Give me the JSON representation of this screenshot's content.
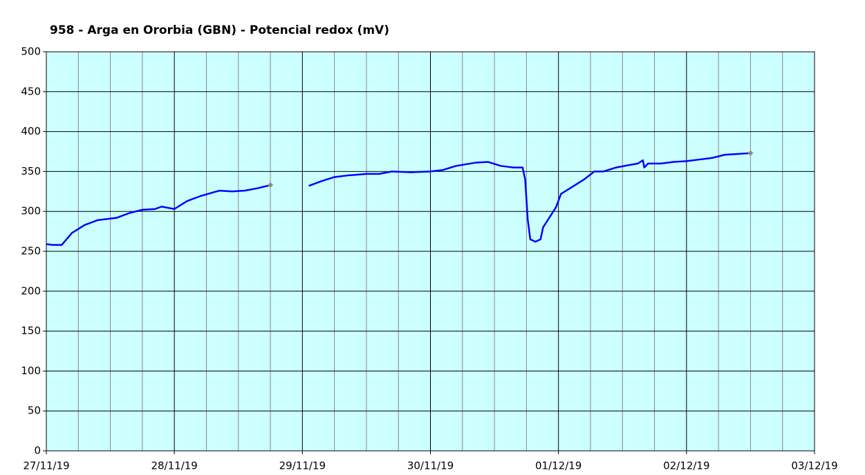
{
  "chart_data": {
    "type": "line",
    "title": "958 - Arga en Ororbia (GBN) - Potencial redox (mV)",
    "xlim": [
      0,
      6
    ],
    "xticks": [
      {
        "value": 0,
        "label": "27/11/19"
      },
      {
        "value": 1,
        "label": "28/11/19"
      },
      {
        "value": 2,
        "label": "29/11/19"
      },
      {
        "value": 3,
        "label": "30/11/19"
      },
      {
        "value": 4,
        "label": "01/12/19"
      },
      {
        "value": 5,
        "label": "02/12/19"
      },
      {
        "value": 6,
        "label": "03/12/19"
      }
    ],
    "xminorticks": [
      0.25,
      0.5,
      0.75,
      1.25,
      1.5,
      1.75,
      2.25,
      2.5,
      2.75,
      3.25,
      3.5,
      3.75,
      4.25,
      4.5,
      4.75,
      5.25,
      5.5,
      5.75
    ],
    "ylim": [
      0,
      500
    ],
    "yticks": [
      0,
      50,
      100,
      150,
      200,
      250,
      300,
      350,
      400,
      450,
      500
    ],
    "grid": true,
    "x": [
      0,
      0.05,
      0.12,
      0.2,
      0.3,
      0.4,
      0.45,
      0.55,
      0.65,
      0.75,
      0.85,
      0.9,
      1.0,
      1.1,
      1.2,
      1.35,
      1.45,
      1.55,
      1.65,
      1.75,
      1.9,
      2.05,
      2.15,
      2.25,
      2.35,
      2.5,
      2.6,
      2.7,
      2.85,
      3.0,
      3.1,
      3.2,
      3.35,
      3.45,
      3.55,
      3.65,
      3.72,
      3.74,
      3.76,
      3.78,
      3.82,
      3.86,
      3.88,
      3.92,
      3.98,
      4.02,
      4.1,
      4.2,
      4.28,
      4.35,
      4.45,
      4.55,
      4.62,
      4.66,
      4.67,
      4.7,
      4.8,
      4.9,
      5.0,
      5.1,
      5.2,
      5.3,
      5.4,
      5.5
    ],
    "series": [
      {
        "color": "#0000ff",
        "marker_color": "#888888",
        "values": [
          259,
          258,
          258,
          273,
          283,
          289,
          290,
          292,
          298,
          302,
          303,
          306,
          303,
          313,
          319,
          326,
          325,
          326,
          329,
          333,
          null,
          332,
          338,
          343,
          345,
          347,
          347,
          350,
          349,
          350,
          352,
          357,
          361,
          362,
          357,
          355,
          355,
          340,
          290,
          265,
          262,
          265,
          280,
          290,
          305,
          322,
          330,
          340,
          350,
          350,
          355,
          358,
          360,
          364,
          355,
          360,
          360,
          362,
          363,
          365,
          367,
          371,
          372,
          373
        ]
      }
    ]
  }
}
